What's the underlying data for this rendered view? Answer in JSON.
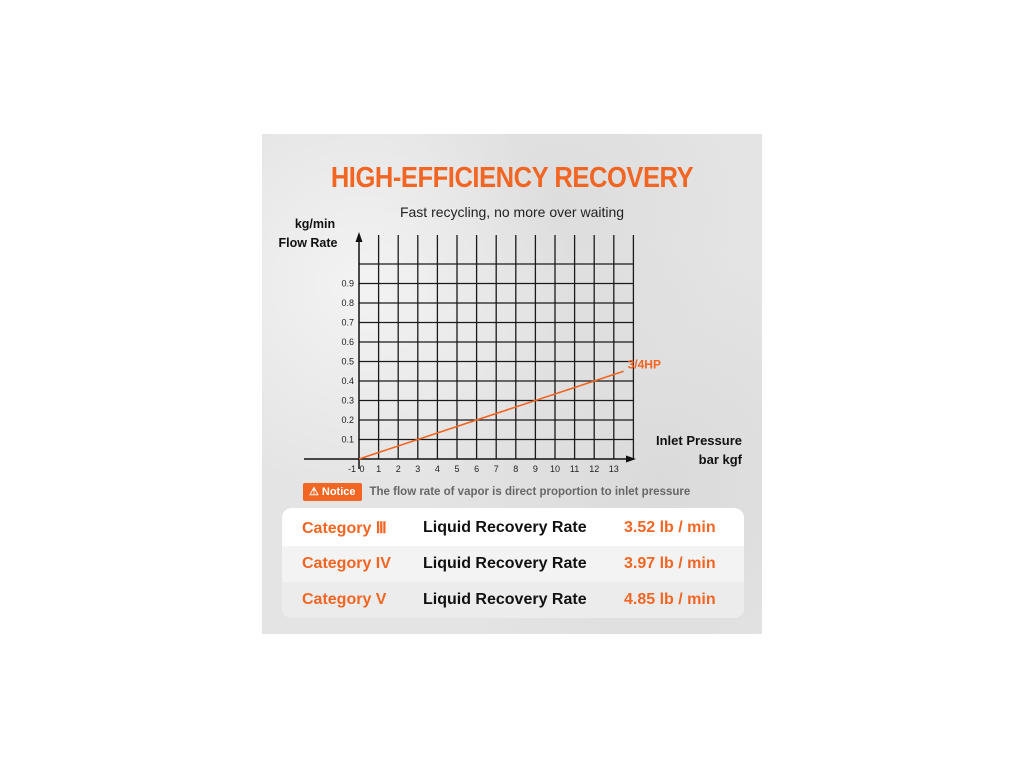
{
  "title": "HIGH-EFFICIENCY RECOVERY",
  "subtitle": "Fast recycling, no more over waiting",
  "chart_data": {
    "type": "line",
    "ylabel_unit": "kg/min",
    "ylabel": "Flow Rate",
    "xlabel": "Inlet Pressure",
    "xlabel_unit": "bar kgf",
    "x_ticks": [
      "-1",
      "0",
      "1",
      "2",
      "3",
      "4",
      "5",
      "6",
      "7",
      "8",
      "9",
      "10",
      "11",
      "12",
      "13"
    ],
    "y_ticks": [
      "0.1",
      "0.2",
      "0.3",
      "0.4",
      "0.5",
      "0.6",
      "0.7",
      "0.8",
      "0.9"
    ],
    "xlim": [
      -1,
      14
    ],
    "ylim": [
      -0.1,
      1.1
    ],
    "grid": true,
    "series": [
      {
        "name": "3/4HP",
        "color": "#f26522",
        "x": [
          0,
          13.5
        ],
        "y": [
          0,
          0.45
        ]
      }
    ]
  },
  "notice": {
    "icon": "warning-icon",
    "badge": "Notice",
    "text": "The flow rate of vapor is direct proportion to inlet pressure"
  },
  "categories": [
    {
      "name": "Category Ⅲ",
      "label": "Liquid Recovery Rate",
      "value": "3.52 lb / min"
    },
    {
      "name": "Category IV",
      "label": "Liquid Recovery Rate",
      "value": "3.97 lb / min"
    },
    {
      "name": "Category V",
      "label": "Liquid Recovery Rate",
      "value": "4.85 lb / min"
    }
  ],
  "colors": {
    "accent": "#f26522",
    "grid": "#1a1a1a"
  }
}
